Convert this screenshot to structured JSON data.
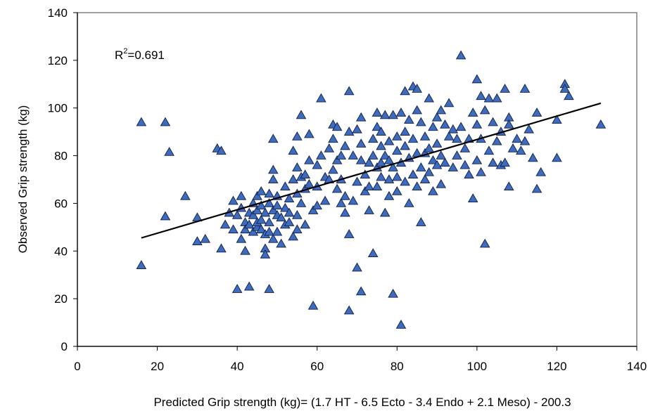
{
  "chart_data": {
    "type": "scatter",
    "xlabel": "Predicted Grip strength (kg)= (1.7 HT - 6.5 Ecto - 3.4 Endo + 2.1 Meso) - 200.3",
    "ylabel": "Observed Grip strength (kg)",
    "xlim": [
      0,
      140
    ],
    "ylim": [
      0,
      140
    ],
    "xticks": [
      "0",
      "20",
      "40",
      "60",
      "80",
      "100",
      "120",
      "140"
    ],
    "yticks": [
      "0",
      "20",
      "40",
      "60",
      "80",
      "100",
      "120",
      "140"
    ],
    "grid": false,
    "annotation": {
      "text_main": "R",
      "text_sup": "2",
      "text_tail": "=0.691"
    },
    "marker": {
      "shape": "triangle",
      "fill": "#3f6bbd",
      "stroke": "#0f1f4a"
    },
    "trendline": {
      "x": [
        16,
        131
      ],
      "y": [
        45.5,
        102
      ],
      "color": "#000000"
    },
    "points": [
      [
        16,
        94
      ],
      [
        22,
        94
      ],
      [
        23,
        81.5
      ],
      [
        22,
        54.5
      ],
      [
        16,
        34
      ],
      [
        27,
        63
      ],
      [
        30,
        54
      ],
      [
        30,
        44
      ],
      [
        32,
        45
      ],
      [
        35,
        83
      ],
      [
        36,
        82
      ],
      [
        36,
        41
      ],
      [
        37,
        51
      ],
      [
        38,
        56
      ],
      [
        39,
        61
      ],
      [
        39,
        49
      ],
      [
        40,
        55
      ],
      [
        40,
        24
      ],
      [
        41,
        63
      ],
      [
        41,
        58
      ],
      [
        41,
        45
      ],
      [
        42,
        52
      ],
      [
        42,
        49
      ],
      [
        42,
        40
      ],
      [
        43,
        56
      ],
      [
        43,
        51
      ],
      [
        43,
        25
      ],
      [
        44,
        60
      ],
      [
        44,
        48
      ],
      [
        44,
        55
      ],
      [
        45,
        57
      ],
      [
        45,
        50
      ],
      [
        45,
        63
      ],
      [
        45,
        52
      ],
      [
        46,
        59
      ],
      [
        46,
        49
      ],
      [
        46,
        65
      ],
      [
        46,
        53
      ],
      [
        47,
        47
      ],
      [
        47,
        41
      ],
      [
        47,
        56
      ],
      [
        47,
        38.5
      ],
      [
        48,
        60
      ],
      [
        48,
        52
      ],
      [
        48,
        48
      ],
      [
        48,
        64
      ],
      [
        48,
        24
      ],
      [
        49,
        45
      ],
      [
        49,
        57
      ],
      [
        49,
        70
      ],
      [
        49,
        87
      ],
      [
        49,
        74
      ],
      [
        50,
        63
      ],
      [
        50,
        59
      ],
      [
        50,
        55
      ],
      [
        50,
        48
      ],
      [
        51,
        54
      ],
      [
        51,
        43
      ],
      [
        52,
        67
      ],
      [
        52,
        58
      ],
      [
        52,
        51
      ],
      [
        53,
        62
      ],
      [
        53,
        56
      ],
      [
        53,
        52
      ],
      [
        54,
        70
      ],
      [
        54,
        82
      ],
      [
        54,
        46
      ],
      [
        55,
        88
      ],
      [
        55,
        75
      ],
      [
        55,
        64
      ],
      [
        55,
        55
      ],
      [
        55,
        49
      ],
      [
        56,
        97
      ],
      [
        56,
        71
      ],
      [
        56,
        60
      ],
      [
        57,
        72
      ],
      [
        57,
        66
      ],
      [
        57,
        51
      ],
      [
        58,
        89
      ],
      [
        58,
        78
      ],
      [
        58,
        68
      ],
      [
        59,
        17
      ],
      [
        59,
        57
      ],
      [
        60,
        76
      ],
      [
        60,
        59
      ],
      [
        60,
        67
      ],
      [
        61,
        104
      ],
      [
        61,
        80
      ],
      [
        62,
        61
      ],
      [
        62,
        71
      ],
      [
        63,
        70
      ],
      [
        63,
        83
      ],
      [
        64,
        93
      ],
      [
        64,
        87
      ],
      [
        64,
        74
      ],
      [
        65,
        66
      ],
      [
        65,
        92
      ],
      [
        65,
        78
      ],
      [
        66,
        80
      ],
      [
        66,
        60
      ],
      [
        66,
        70
      ],
      [
        67,
        84
      ],
      [
        67,
        63
      ],
      [
        67,
        56
      ],
      [
        68,
        107
      ],
      [
        68,
        47
      ],
      [
        68,
        15
      ],
      [
        68,
        90
      ],
      [
        69,
        80
      ],
      [
        69,
        61
      ],
      [
        70,
        91
      ],
      [
        70,
        69
      ],
      [
        70,
        33
      ],
      [
        71,
        96
      ],
      [
        71,
        85
      ],
      [
        71,
        78
      ],
      [
        71,
        23
      ],
      [
        72,
        72
      ],
      [
        72,
        65
      ],
      [
        73,
        57
      ],
      [
        73,
        77
      ],
      [
        73,
        67
      ],
      [
        74,
        87
      ],
      [
        74,
        80
      ],
      [
        74,
        39
      ],
      [
        75,
        98
      ],
      [
        75,
        92
      ],
      [
        75,
        75
      ],
      [
        75,
        67
      ],
      [
        76,
        90
      ],
      [
        76,
        84
      ],
      [
        76,
        77
      ],
      [
        76,
        71
      ],
      [
        77,
        97
      ],
      [
        77,
        80
      ],
      [
        77,
        56
      ],
      [
        78,
        86
      ],
      [
        78,
        78
      ],
      [
        78,
        70
      ],
      [
        78,
        63
      ],
      [
        79,
        22
      ],
      [
        79,
        97
      ],
      [
        79,
        75
      ],
      [
        80,
        88
      ],
      [
        80,
        82
      ],
      [
        80,
        71
      ],
      [
        80,
        65
      ],
      [
        81,
        98
      ],
      [
        81,
        77
      ],
      [
        81,
        9
      ],
      [
        82,
        107
      ],
      [
        82,
        90
      ],
      [
        82,
        84
      ],
      [
        82,
        69
      ],
      [
        83,
        95
      ],
      [
        83,
        79
      ],
      [
        83,
        60
      ],
      [
        84,
        109
      ],
      [
        84,
        87
      ],
      [
        84,
        72
      ],
      [
        85,
        108
      ],
      [
        85,
        99
      ],
      [
        85,
        81
      ],
      [
        85,
        67
      ],
      [
        86,
        94
      ],
      [
        86,
        75
      ],
      [
        86,
        52
      ],
      [
        87,
        88
      ],
      [
        87,
        81
      ],
      [
        87,
        70
      ],
      [
        88,
        104
      ],
      [
        88,
        83
      ],
      [
        88,
        73
      ],
      [
        89,
        92
      ],
      [
        89,
        78
      ],
      [
        89,
        65
      ],
      [
        90,
        96
      ],
      [
        90,
        85
      ],
      [
        90,
        76
      ],
      [
        91,
        99
      ],
      [
        91,
        80
      ],
      [
        91,
        68
      ],
      [
        92,
        93
      ],
      [
        92,
        77
      ],
      [
        93,
        102
      ],
      [
        93,
        88
      ],
      [
        94,
        91
      ],
      [
        94,
        75
      ],
      [
        95,
        87
      ],
      [
        95,
        80
      ],
      [
        96,
        122
      ],
      [
        96,
        92
      ],
      [
        97,
        83
      ],
      [
        97,
        76
      ],
      [
        98,
        87
      ],
      [
        98,
        72
      ],
      [
        99,
        62
      ],
      [
        99,
        98
      ],
      [
        100,
        112
      ],
      [
        100,
        93
      ],
      [
        100,
        78
      ],
      [
        101,
        105
      ],
      [
        101,
        87
      ],
      [
        101,
        73
      ],
      [
        102,
        43
      ],
      [
        102,
        99
      ],
      [
        103,
        104
      ],
      [
        103,
        82
      ],
      [
        104,
        77
      ],
      [
        104,
        94
      ],
      [
        105,
        86
      ],
      [
        105,
        104
      ],
      [
        106,
        90
      ],
      [
        106,
        76
      ],
      [
        107,
        108
      ],
      [
        107,
        77
      ],
      [
        108,
        96
      ],
      [
        108,
        67
      ],
      [
        108,
        93
      ],
      [
        109,
        83
      ],
      [
        110,
        87
      ],
      [
        111,
        82
      ],
      [
        112,
        86
      ],
      [
        112,
        108
      ],
      [
        113,
        91
      ],
      [
        114,
        79
      ],
      [
        115,
        66
      ],
      [
        115,
        98
      ],
      [
        116,
        73
      ],
      [
        120,
        95
      ],
      [
        120,
        79
      ],
      [
        122,
        110
      ],
      [
        122,
        108
      ],
      [
        123,
        105
      ],
      [
        131,
        93
      ]
    ]
  }
}
